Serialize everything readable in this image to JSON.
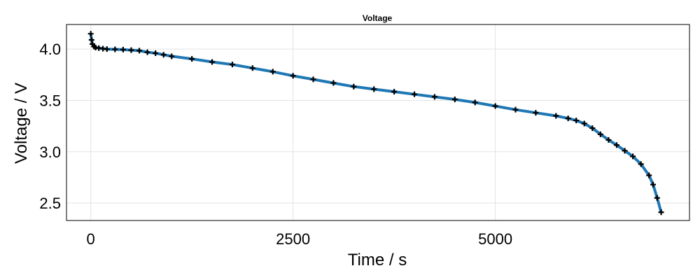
{
  "chart_data": {
    "type": "line",
    "title": "Voltage",
    "xlabel": "Time / s",
    "ylabel": "Voltage / V",
    "xlim": [
      -300,
      7400
    ],
    "ylim": [
      2.33,
      4.24
    ],
    "xticks": [
      0,
      2500,
      5000
    ],
    "yticks": [
      2.5,
      3.0,
      3.5,
      4.0
    ],
    "xtick_labels": [
      "0",
      "2500",
      "5000"
    ],
    "ytick_labels": [
      "2.5",
      "3.0",
      "3.5",
      "4.0"
    ],
    "grid": true,
    "series": [
      {
        "line_color": "#1f77b4",
        "marker": "plus",
        "marker_color": "#000000",
        "x": [
          0,
          10,
          20,
          40,
          60,
          100,
          150,
          200,
          300,
          400,
          500,
          600,
          700,
          800,
          900,
          1000,
          1250,
          1500,
          1750,
          2000,
          2250,
          2500,
          2750,
          3000,
          3250,
          3500,
          3750,
          4000,
          4250,
          4500,
          4750,
          5000,
          5250,
          5500,
          5750,
          5900,
          6000,
          6100,
          6200,
          6300,
          6400,
          6500,
          6600,
          6700,
          6800,
          6900,
          6950,
          7000,
          7050
        ],
        "y": [
          4.15,
          4.09,
          4.05,
          4.025,
          4.015,
          4.01,
          4.005,
          4.0,
          3.998,
          3.995,
          3.99,
          3.985,
          3.97,
          3.96,
          3.945,
          3.93,
          3.905,
          3.875,
          3.85,
          3.815,
          3.78,
          3.74,
          3.705,
          3.67,
          3.635,
          3.61,
          3.585,
          3.56,
          3.535,
          3.51,
          3.48,
          3.445,
          3.41,
          3.38,
          3.35,
          3.325,
          3.305,
          3.275,
          3.23,
          3.17,
          3.115,
          3.065,
          3.01,
          2.955,
          2.88,
          2.77,
          2.68,
          2.55,
          2.41
        ]
      }
    ]
  }
}
